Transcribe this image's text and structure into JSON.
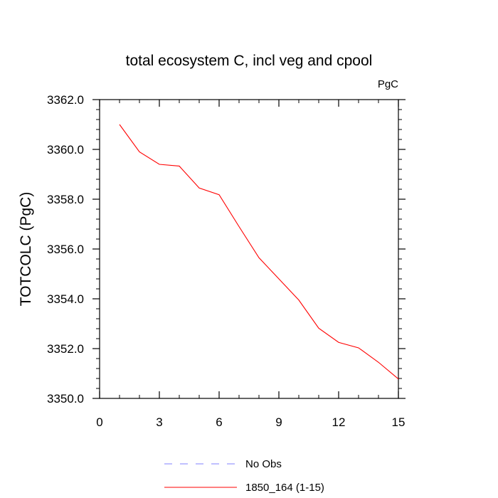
{
  "chart_data": {
    "type": "line",
    "title": "total ecosystem C, incl veg and cpool",
    "units_label": "PgC",
    "ylabel": "TOTCOLC  (PgC)",
    "xlabel": "",
    "xlim": [
      0,
      15
    ],
    "ylim": [
      3350,
      3362
    ],
    "xticks": [
      0,
      3,
      6,
      9,
      12,
      15
    ],
    "xtick_labels": [
      "0",
      "3",
      "6",
      "9",
      "12",
      "15"
    ],
    "yticks": [
      3350,
      3352,
      3354,
      3356,
      3358,
      3360,
      3362
    ],
    "ytick_labels": [
      "3350.0",
      "3352.0",
      "3354.0",
      "3356.0",
      "3358.0",
      "3360.0",
      "3362.0"
    ],
    "x_minor_step": 1,
    "y_minor_step": 0.4,
    "grid": false,
    "series": [
      {
        "name": "1850_164 (1-15)",
        "color": "#ff0000",
        "dash": "solid",
        "x": [
          1,
          2,
          3,
          4,
          5,
          6,
          7,
          8,
          9,
          10,
          11,
          12,
          13,
          14,
          15
        ],
        "values": [
          3361.0,
          3359.9,
          3359.4,
          3359.33,
          3358.45,
          3358.18,
          3356.9,
          3355.65,
          3354.8,
          3353.95,
          3352.82,
          3352.25,
          3352.03,
          3351.45,
          3350.78
        ]
      }
    ],
    "legend": [
      {
        "label": "No Obs",
        "color": "#8080ff",
        "dash": "dashed"
      },
      {
        "label": "1850_164 (1-15)",
        "color": "#ff0000",
        "dash": "solid"
      }
    ],
    "legend_position": "bottom-center"
  }
}
